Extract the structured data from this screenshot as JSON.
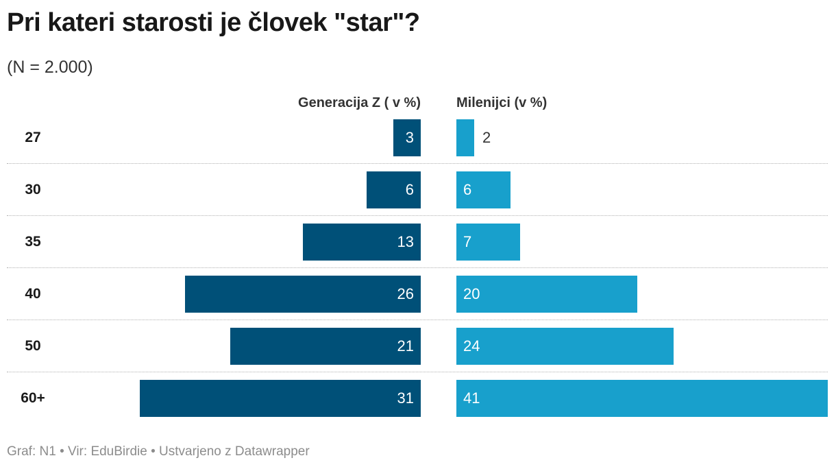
{
  "title": "Pri kateri starosti je človek \"star\"?",
  "subtitle": "(N = 2.000)",
  "footer": "Graf: N1 • Vir: EduBirdie • Ustvarjeno z Datawrapper",
  "colors": {
    "gen_z": "#005078",
    "millennials": "#18a0cc"
  },
  "chart_data": {
    "type": "bar",
    "orientation": "horizontal-butterfly",
    "title": "Pri kateri starosti je človek \"star\"?",
    "subtitle": "(N = 2.000)",
    "categories": [
      "27",
      "30",
      "35",
      "40",
      "50",
      "60+"
    ],
    "series": [
      {
        "name": "Generacija Z ( v %)",
        "values": [
          3,
          6,
          13,
          26,
          21,
          31
        ]
      },
      {
        "name": "Milenijci (v %)",
        "values": [
          2,
          6,
          7,
          20,
          24,
          41
        ]
      }
    ],
    "xlim": [
      0,
      41
    ]
  }
}
